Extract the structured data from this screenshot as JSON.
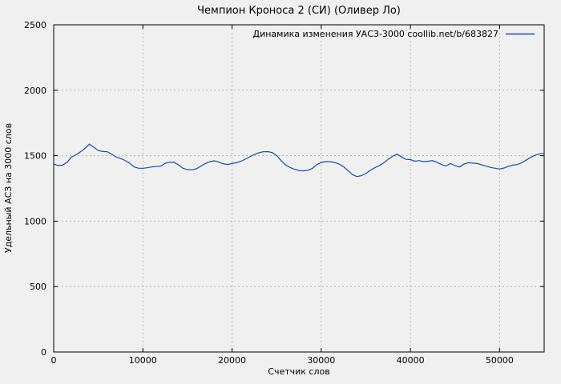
{
  "figure": {
    "background": "#f0f0f0"
  },
  "chart_data": {
    "type": "line",
    "title": "Чемпион Кроноса 2 (СИ) (Оливер Ло)",
    "xlabel": "Счетчик слов",
    "ylabel": "Удельный АСЗ на 3000 слов",
    "legend_position": "top-right-inside",
    "grid": "dashed",
    "xlim": [
      0,
      55000
    ],
    "ylim": [
      0,
      2500
    ],
    "xticks": [
      0,
      10000,
      20000,
      30000,
      40000,
      50000
    ],
    "yticks": [
      0,
      500,
      1000,
      1500,
      2000,
      2500
    ],
    "colors": {
      "line": "#1b4ba0",
      "grid": "#b5b5b5",
      "axis": "#000000",
      "background": "#f0f0f0",
      "text": "#000000"
    },
    "x": [
      0,
      500,
      1000,
      1500,
      2000,
      2500,
      3000,
      3500,
      4000,
      4500,
      5000,
      5500,
      6000,
      6500,
      7000,
      7500,
      8000,
      8500,
      9000,
      9500,
      10000,
      10500,
      11000,
      11500,
      12000,
      12500,
      13000,
      13500,
      14000,
      14500,
      15000,
      15500,
      16000,
      16500,
      17000,
      17500,
      18000,
      18500,
      19000,
      19500,
      20000,
      20500,
      21000,
      21500,
      22000,
      22500,
      23000,
      23500,
      24000,
      24500,
      25000,
      25500,
      26000,
      26500,
      27000,
      27500,
      28000,
      28500,
      29000,
      29500,
      30000,
      30500,
      31000,
      31500,
      32000,
      32500,
      33000,
      33500,
      34000,
      34500,
      35000,
      35500,
      36000,
      36500,
      37000,
      37500,
      38000,
      38500,
      39000,
      39500,
      40000,
      40500,
      41000,
      41500,
      42000,
      42500,
      43000,
      43500,
      44000,
      44500,
      45000,
      45500,
      46000,
      46500,
      47000,
      47500,
      48000,
      48500,
      49000,
      49500,
      50000,
      50500,
      51000,
      51500,
      52000,
      52500,
      53000,
      53500,
      54000,
      54500,
      55000
    ],
    "series": [
      {
        "name": "Динамика изменения УАСЗ-3000 coollib.net/b/683827",
        "values": [
          1436,
          1424,
          1428,
          1450,
          1490,
          1507,
          1530,
          1555,
          1588,
          1565,
          1540,
          1532,
          1530,
          1512,
          1490,
          1478,
          1464,
          1443,
          1415,
          1404,
          1404,
          1408,
          1414,
          1417,
          1420,
          1442,
          1450,
          1449,
          1430,
          1404,
          1394,
          1392,
          1400,
          1420,
          1440,
          1454,
          1461,
          1451,
          1438,
          1433,
          1440,
          1446,
          1458,
          1474,
          1492,
          1510,
          1522,
          1530,
          1531,
          1524,
          1502,
          1463,
          1430,
          1410,
          1396,
          1387,
          1384,
          1388,
          1402,
          1432,
          1448,
          1455,
          1454,
          1448,
          1436,
          1416,
          1386,
          1356,
          1340,
          1347,
          1363,
          1388,
          1408,
          1424,
          1445,
          1472,
          1495,
          1512,
          1490,
          1472,
          1470,
          1458,
          1462,
          1454,
          1458,
          1462,
          1448,
          1432,
          1422,
          1440,
          1424,
          1413,
          1436,
          1446,
          1443,
          1440,
          1430,
          1420,
          1410,
          1404,
          1398,
          1406,
          1419,
          1428,
          1432,
          1446,
          1467,
          1487,
          1504,
          1514,
          1519
        ]
      }
    ]
  }
}
